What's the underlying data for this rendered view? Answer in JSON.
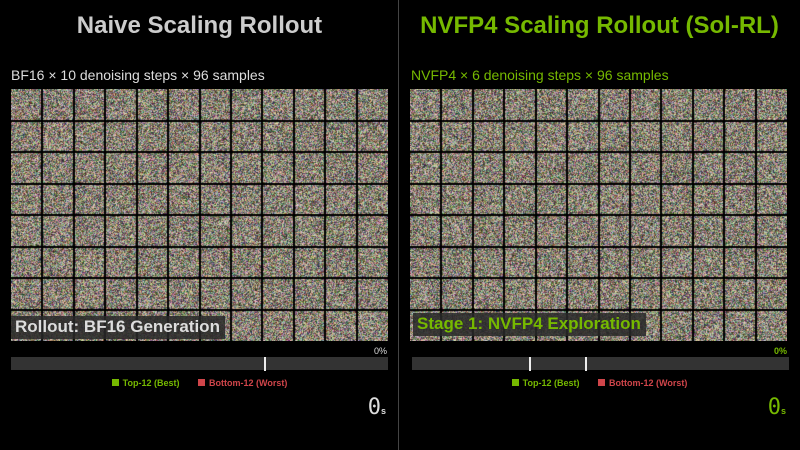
{
  "colors": {
    "accent_green": "#76b900",
    "neutral": "#cccccc",
    "best": "#76b900",
    "worst": "#d0454a"
  },
  "grid": {
    "columns": 12,
    "rows": 8
  },
  "left": {
    "title": "Naive Scaling Rollout",
    "subtitle": "BF16 × 10 denoising steps × 96 samples",
    "stage_label": "Rollout: BF16 Generation",
    "progress_percent": "0%",
    "progress_markers": [
      0.67
    ],
    "legend_best": "Top-12 (Best)",
    "legend_worst": "Bottom-12 (Worst)",
    "timer_value": "0",
    "timer_unit": "s"
  },
  "right": {
    "title": "NVFP4 Scaling Rollout (Sol-RL)",
    "subtitle": "NVFP4 × 6 denoising steps × 96 samples",
    "stage_label": "Stage 1: NVFP4 Exploration",
    "progress_percent": "0%",
    "progress_markers": [
      0.31,
      0.46
    ],
    "legend_best": "Top-12 (Best)",
    "legend_worst": "Bottom-12 (Worst)",
    "timer_value": "0",
    "timer_unit": "s"
  }
}
